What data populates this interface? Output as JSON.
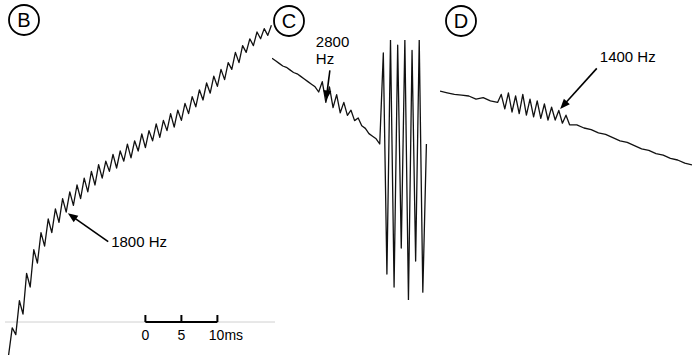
{
  "chart_data": [
    {
      "type": "line",
      "title": "B",
      "color": "#111111",
      "tick_labels": "x",
      "xlim": [
        -19.5,
        18
      ],
      "ylim": [
        0,
        100
      ],
      "xticks": [
        0,
        5,
        {
          "value": 10,
          "label": "10ms"
        }
      ],
      "x": [
        -19,
        -18.5,
        -18,
        -17.5,
        -17,
        -16.5,
        -16,
        -15.5,
        -15,
        -14.5,
        -14,
        -13.5,
        -13,
        -12.5,
        -12,
        -11.5,
        -11,
        -10.5,
        -10,
        -9.5,
        -9,
        -8.5,
        -8,
        -7.5,
        -7,
        -6.5,
        -6,
        -5.5,
        -5,
        -4.5,
        -4,
        -3.5,
        -3,
        -2.5,
        -2,
        -1.5,
        -1,
        -0.5,
        0,
        0.5,
        1,
        1.5,
        2,
        2.5,
        3,
        3.5,
        4,
        4.5,
        5,
        5.5,
        6,
        6.5,
        7,
        7.5,
        8,
        8.5,
        9,
        9.5,
        10,
        10.5,
        11,
        11.5,
        12,
        12.5,
        13,
        13.5,
        14,
        14.5,
        15,
        15.5,
        16,
        16.5,
        17,
        17.5
      ],
      "values": [
        0,
        8,
        6,
        16,
        12,
        24,
        20,
        31,
        27,
        36,
        32,
        40,
        36,
        43,
        39,
        46,
        42,
        48,
        44,
        50,
        46,
        52,
        48,
        54,
        50,
        56,
        52,
        57,
        54,
        59,
        55,
        60,
        57,
        62,
        58,
        63,
        60,
        65,
        61,
        66,
        63,
        68,
        64,
        69,
        66,
        71,
        67,
        72,
        69,
        74,
        71,
        76,
        73,
        78,
        75,
        80,
        77,
        82,
        79,
        84,
        81,
        86,
        84,
        89,
        86,
        91,
        89,
        93,
        91,
        95,
        93,
        96,
        94,
        97
      ],
      "annotations": [
        {
          "text": "1800 Hz",
          "x": -11,
          "y": 42
        }
      ]
    },
    {
      "type": "line",
      "title": "C",
      "color": "#111111",
      "tick_labels": false,
      "xlim": [
        0,
        22
      ],
      "ylim": [
        0,
        100
      ],
      "x": [
        0,
        0.5,
        1,
        1.5,
        2,
        2.5,
        3,
        3.5,
        4,
        4.5,
        5,
        5.5,
        6,
        6.5,
        7,
        7.5,
        8,
        8.5,
        9,
        9.5,
        10,
        10.5,
        11,
        11.5,
        12,
        12.5,
        13,
        13.5,
        14,
        14.5,
        15,
        15.5,
        16,
        16.5,
        17,
        17.5,
        18,
        18.5,
        19,
        19.5,
        20,
        20.5,
        21,
        21.5
      ],
      "values": [
        93,
        92,
        91,
        90,
        89.5,
        88.5,
        87.5,
        87,
        86,
        85,
        84,
        83,
        82,
        80,
        84,
        76,
        82,
        74,
        79,
        72,
        76,
        71,
        73,
        69,
        70,
        67,
        66,
        64,
        63,
        62,
        60,
        95,
        10,
        100,
        5,
        98,
        20,
        100,
        0,
        96,
        15,
        100,
        3,
        60
      ],
      "annotations": [
        {
          "text": "2800 Hz",
          "x": 7.5,
          "y": 76
        }
      ]
    },
    {
      "type": "line",
      "title": "D",
      "color": "#111111",
      "tick_labels": false,
      "xlim": [
        0,
        35
      ],
      "ylim": [
        0,
        100
      ],
      "x": [
        0,
        1,
        2,
        3,
        4,
        5,
        6,
        7,
        8,
        8.5,
        9,
        9.5,
        10,
        10.5,
        11,
        11.5,
        12,
        12.5,
        13,
        13.5,
        14,
        14.5,
        15,
        15.5,
        16,
        16.5,
        17,
        17.5,
        18,
        19,
        20,
        21,
        22,
        23,
        24,
        25,
        26,
        27,
        28,
        29,
        30,
        31,
        32,
        33,
        34,
        35
      ],
      "values": [
        68,
        67,
        66,
        65.5,
        65,
        63,
        64,
        62,
        61,
        66,
        57,
        67,
        55,
        65,
        54,
        66,
        53,
        63,
        52,
        62,
        51,
        60,
        50,
        58,
        50,
        56,
        48,
        53,
        47,
        47,
        45,
        44,
        42,
        41,
        39,
        37,
        36,
        34,
        32,
        31,
        29,
        28,
        26,
        25,
        23,
        22
      ],
      "annotations": [
        {
          "text": "1400 Hz",
          "x": 16.5,
          "y": 56
        }
      ]
    }
  ]
}
